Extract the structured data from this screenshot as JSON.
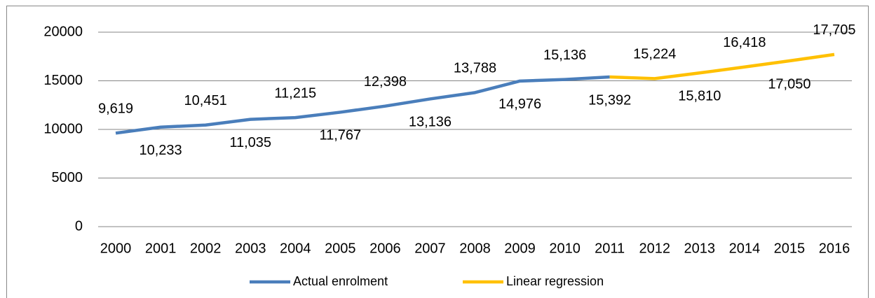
{
  "chart_data": {
    "type": "line",
    "categories": [
      "2000",
      "2001",
      "2002",
      "2003",
      "2004",
      "2005",
      "2006",
      "2007",
      "2008",
      "2009",
      "2010",
      "2011",
      "2012",
      "2013",
      "2014",
      "2015",
      "2016"
    ],
    "series": [
      {
        "name": "Actual enrolment",
        "color": "#4a7ebb",
        "values": [
          9619,
          10233,
          10451,
          11035,
          11215,
          11767,
          12398,
          13136,
          13788,
          14976,
          15136,
          15392,
          null,
          null,
          null,
          null,
          null
        ],
        "value_labels": [
          "9,619",
          "10,233",
          "10,451",
          "11,035",
          "11,215",
          "11,767",
          "12,398",
          "13,136",
          "13,788",
          "14,976",
          "15,136",
          "15,392",
          null,
          null,
          null,
          null,
          null
        ]
      },
      {
        "name": "Linear regression",
        "color": "#ffc000",
        "values": [
          null,
          null,
          null,
          null,
          null,
          null,
          null,
          null,
          null,
          null,
          null,
          15392,
          15224,
          15810,
          16418,
          17050,
          17705
        ],
        "value_labels": [
          null,
          null,
          null,
          null,
          null,
          null,
          null,
          null,
          null,
          null,
          null,
          null,
          "15,224",
          "15,810",
          "16,418",
          "17,050",
          "17,705"
        ]
      }
    ],
    "ylim": [
      0,
      20000
    ],
    "yticks": [
      0,
      5000,
      10000,
      15000,
      20000
    ],
    "grid": true,
    "legend": "bottom"
  }
}
